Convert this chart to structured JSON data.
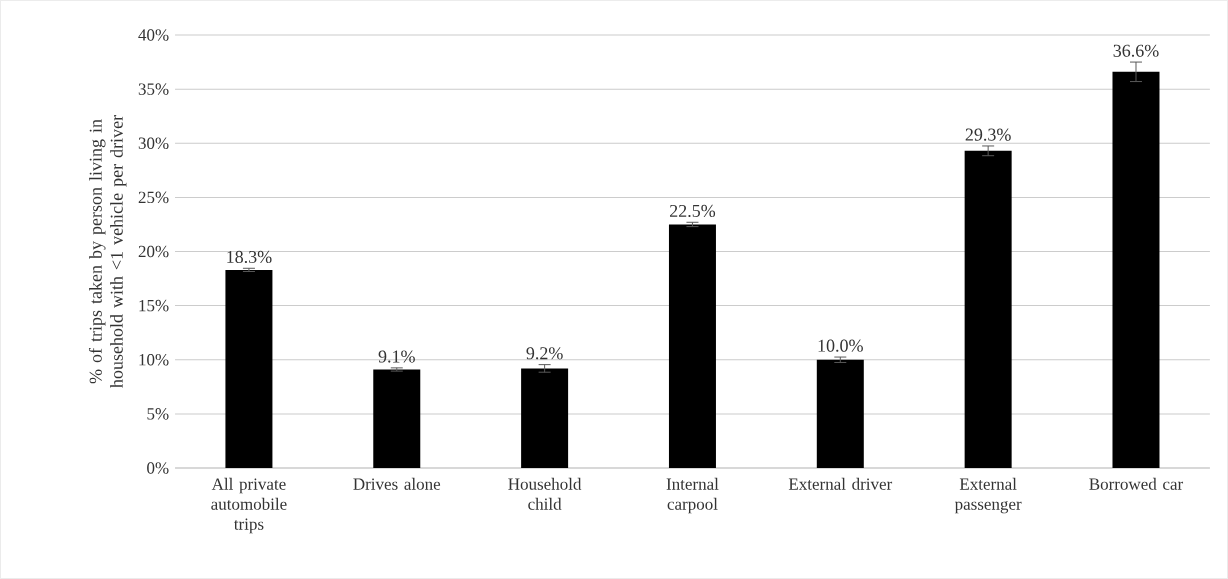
{
  "chart_data": {
    "type": "bar",
    "ylabel": "% of trips taken by person living in household with <1 vehicle per driver",
    "categories": [
      "All private automobile trips",
      "Drives alone",
      "Household child",
      "Internal carpool",
      "External driver",
      "External passenger",
      "Borrowed car"
    ],
    "values": [
      18.3,
      9.1,
      9.2,
      22.5,
      10.0,
      29.3,
      36.6
    ],
    "errors": [
      0.15,
      0.15,
      0.35,
      0.2,
      0.25,
      0.45,
      0.9
    ],
    "value_labels": [
      "18.3%",
      "9.1%",
      "9.2%",
      "22.5%",
      "10.0%",
      "29.3%",
      "36.6%"
    ],
    "color": "#000000",
    "ylim": [
      0,
      40
    ],
    "yticks": [
      {
        "value": 0,
        "label": "0%"
      },
      {
        "value": 5,
        "label": "5%"
      },
      {
        "value": 10,
        "label": "10%"
      },
      {
        "value": 15,
        "label": "15%"
      },
      {
        "value": 20,
        "label": "20%"
      },
      {
        "value": 25,
        "label": "25%"
      },
      {
        "value": 30,
        "label": "30%"
      },
      {
        "value": 35,
        "label": "35%"
      },
      {
        "value": 40,
        "label": "40%"
      }
    ],
    "grid": "y"
  }
}
